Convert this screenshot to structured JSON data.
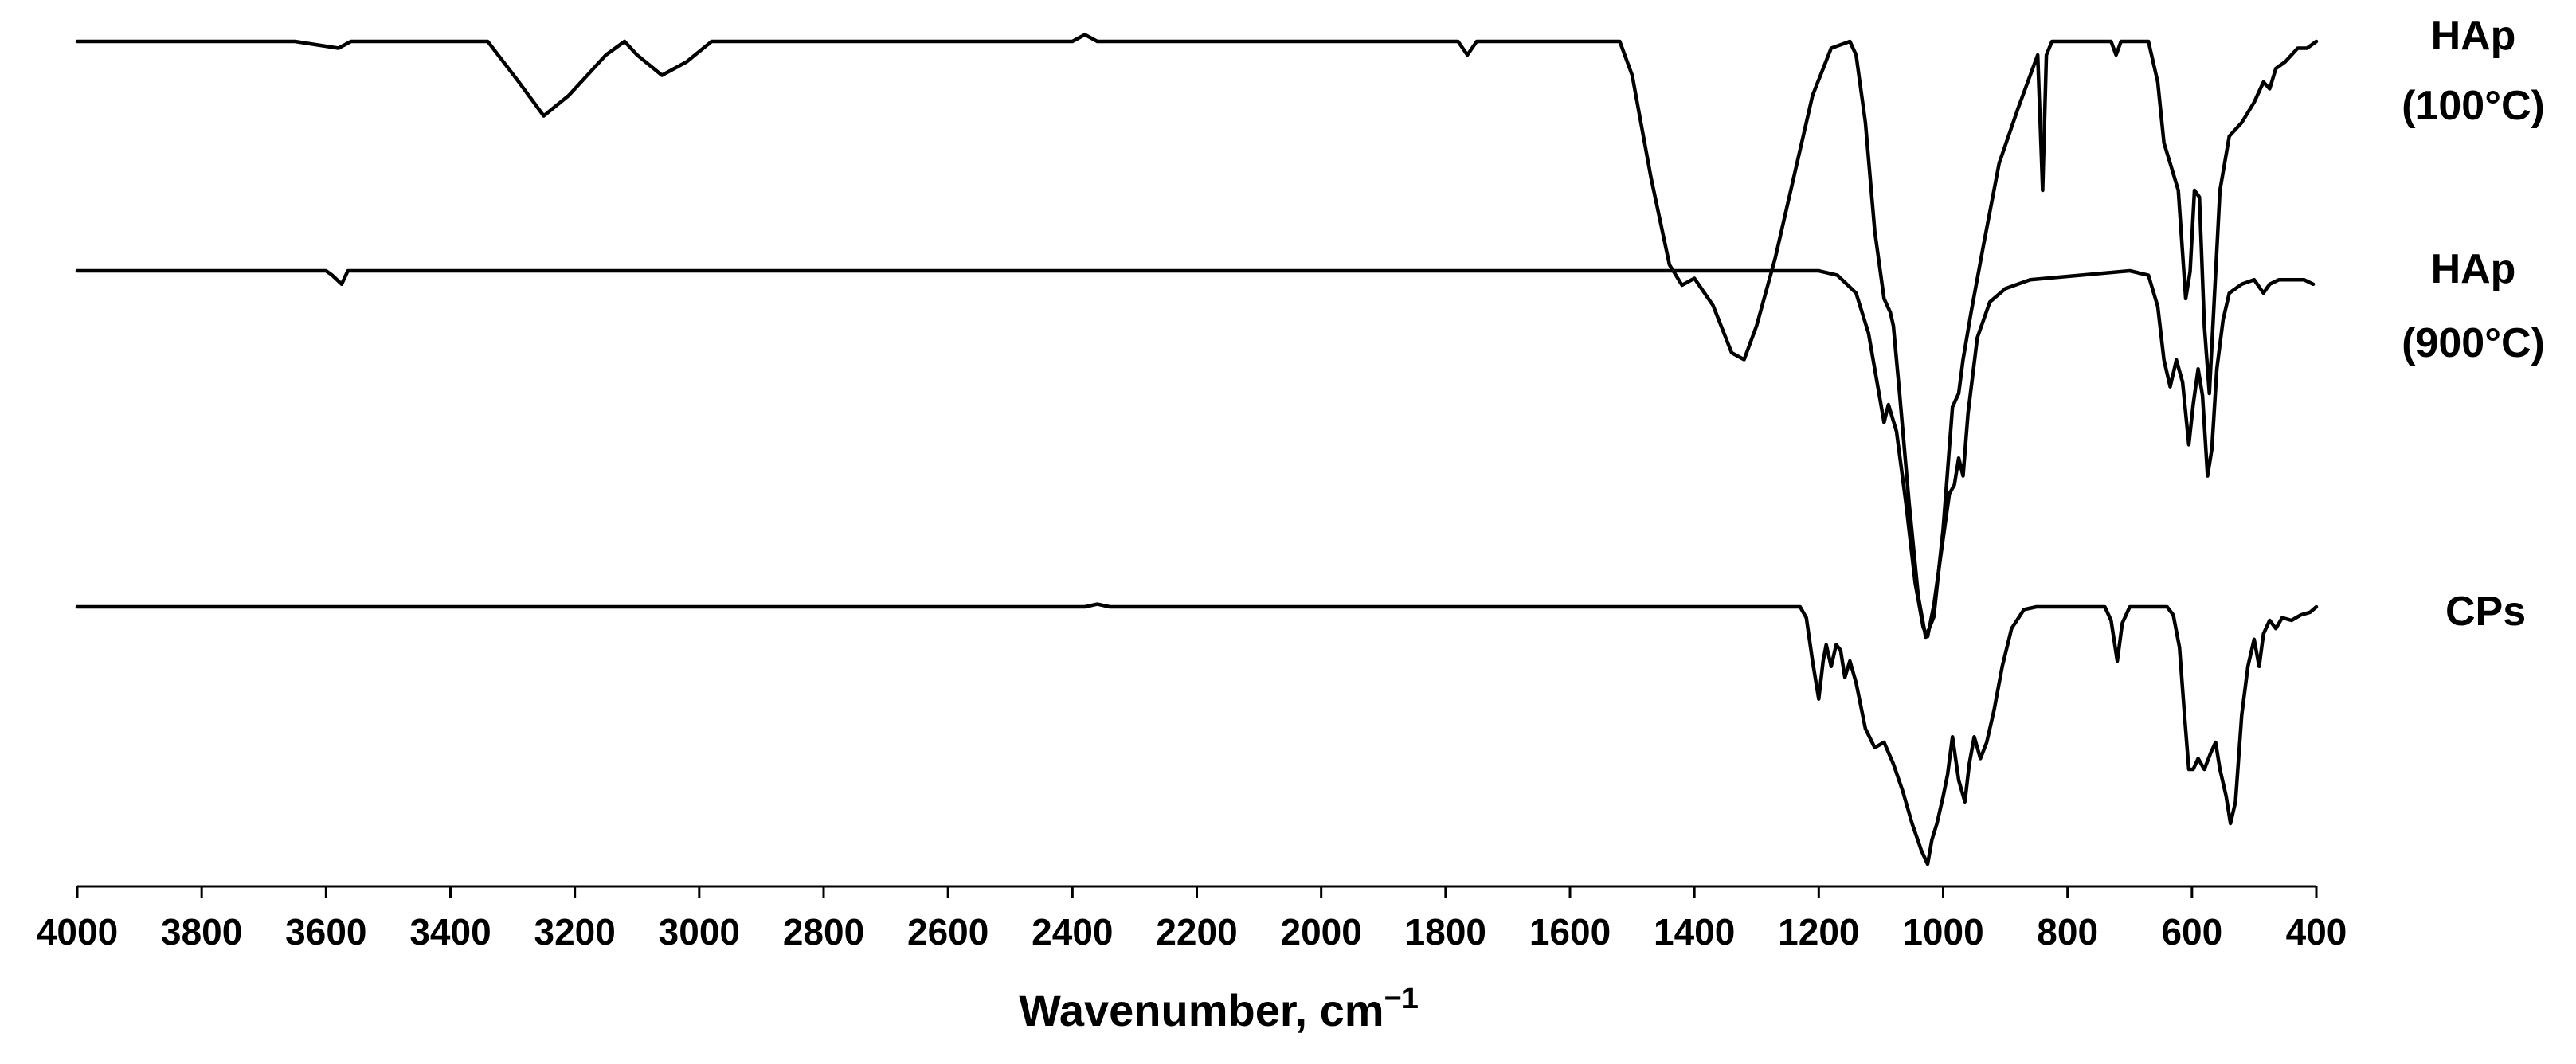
{
  "chart_data": {
    "type": "line",
    "title": "",
    "xlabel": "Wavenumber, cm",
    "xlabel_superscript": "−1",
    "ylabel": "",
    "xlim": [
      4000,
      400
    ],
    "x_reversed": true,
    "grid": false,
    "x_ticks": [
      "4000",
      "3800",
      "3600",
      "3400",
      "3200",
      "3000",
      "2800",
      "2600",
      "2400",
      "2200",
      "2000",
      "1800",
      "1600",
      "1400",
      "1200",
      "1000",
      "800",
      "600",
      "400"
    ],
    "y_units": "relative transmittance (0 = baseline, 1 = strongest band)",
    "series": [
      {
        "name": "HAp (100°C)",
        "label_lines": [
          "HAp",
          "(100°C)"
        ],
        "baseline": 0.0,
        "points": [
          [
            4000,
            0.0
          ],
          [
            3900,
            0.0
          ],
          [
            3650,
            0.0
          ],
          [
            3580,
            0.01
          ],
          [
            3560,
            0.0
          ],
          [
            3340,
            0.0
          ],
          [
            3290,
            0.06
          ],
          [
            3250,
            0.11
          ],
          [
            3210,
            0.08
          ],
          [
            3150,
            0.02
          ],
          [
            3120,
            0.0
          ],
          [
            3100,
            0.02
          ],
          [
            3060,
            0.05
          ],
          [
            3020,
            0.03
          ],
          [
            2980,
            0.0
          ],
          [
            2400,
            0.0
          ],
          [
            2380,
            -0.01
          ],
          [
            2360,
            0.0
          ],
          [
            1780,
            0.0
          ],
          [
            1765,
            0.02
          ],
          [
            1750,
            0.0
          ],
          [
            1520,
            0.0
          ],
          [
            1500,
            0.05
          ],
          [
            1470,
            0.2
          ],
          [
            1440,
            0.33
          ],
          [
            1420,
            0.36
          ],
          [
            1400,
            0.35
          ],
          [
            1370,
            0.39
          ],
          [
            1340,
            0.46
          ],
          [
            1320,
            0.47
          ],
          [
            1300,
            0.42
          ],
          [
            1270,
            0.32
          ],
          [
            1240,
            0.2
          ],
          [
            1210,
            0.08
          ],
          [
            1180,
            0.01
          ],
          [
            1150,
            0.0
          ],
          [
            1140,
            0.02
          ],
          [
            1125,
            0.12
          ],
          [
            1110,
            0.28
          ],
          [
            1095,
            0.38
          ],
          [
            1085,
            0.4
          ],
          [
            1080,
            0.42
          ],
          [
            1070,
            0.52
          ],
          [
            1055,
            0.68
          ],
          [
            1040,
            0.82
          ],
          [
            1028,
            0.88
          ],
          [
            1015,
            0.85
          ],
          [
            1000,
            0.72
          ],
          [
            985,
            0.54
          ],
          [
            975,
            0.52
          ],
          [
            968,
            0.47
          ],
          [
            955,
            0.4
          ],
          [
            935,
            0.3
          ],
          [
            910,
            0.18
          ],
          [
            880,
            0.1
          ],
          [
            860,
            0.05
          ],
          [
            848,
            0.02
          ],
          [
            840,
            0.22
          ],
          [
            834,
            0.02
          ],
          [
            825,
            0.0
          ],
          [
            730,
            0.0
          ],
          [
            722,
            0.02
          ],
          [
            714,
            0.0
          ],
          [
            670,
            0.0
          ],
          [
            655,
            0.06
          ],
          [
            645,
            0.15
          ],
          [
            635,
            0.18
          ],
          [
            622,
            0.22
          ],
          [
            610,
            0.38
          ],
          [
            603,
            0.34
          ],
          [
            596,
            0.22
          ],
          [
            588,
            0.23
          ],
          [
            580,
            0.42
          ],
          [
            572,
            0.52
          ],
          [
            564,
            0.38
          ],
          [
            555,
            0.22
          ],
          [
            540,
            0.14
          ],
          [
            520,
            0.12
          ],
          [
            500,
            0.09
          ],
          [
            485,
            0.06
          ],
          [
            475,
            0.07
          ],
          [
            465,
            0.04
          ],
          [
            450,
            0.03
          ],
          [
            430,
            0.01
          ],
          [
            415,
            0.01
          ],
          [
            400,
            0.0
          ]
        ]
      },
      {
        "name": "HAp (900°C)",
        "label_lines": [
          "HAp",
          "(900°C)"
        ],
        "baseline": 0.0,
        "points": [
          [
            4000,
            0.0
          ],
          [
            3600,
            0.0
          ],
          [
            3590,
            0.01
          ],
          [
            3575,
            0.03
          ],
          [
            3565,
            0.0
          ],
          [
            2000,
            0.0
          ],
          [
            1200,
            0.0
          ],
          [
            1170,
            0.01
          ],
          [
            1140,
            0.05
          ],
          [
            1120,
            0.14
          ],
          [
            1105,
            0.26
          ],
          [
            1095,
            0.34
          ],
          [
            1088,
            0.3
          ],
          [
            1075,
            0.36
          ],
          [
            1060,
            0.52
          ],
          [
            1045,
            0.7
          ],
          [
            1032,
            0.8
          ],
          [
            1025,
            0.82
          ],
          [
            1015,
            0.75
          ],
          [
            1000,
            0.6
          ],
          [
            990,
            0.5
          ],
          [
            982,
            0.48
          ],
          [
            975,
            0.42
          ],
          [
            968,
            0.46
          ],
          [
            960,
            0.32
          ],
          [
            945,
            0.15
          ],
          [
            925,
            0.07
          ],
          [
            900,
            0.04
          ],
          [
            860,
            0.02
          ],
          [
            700,
            0.0
          ],
          [
            670,
            0.01
          ],
          [
            655,
            0.08
          ],
          [
            645,
            0.2
          ],
          [
            635,
            0.26
          ],
          [
            625,
            0.2
          ],
          [
            615,
            0.25
          ],
          [
            605,
            0.39
          ],
          [
            598,
            0.3
          ],
          [
            590,
            0.22
          ],
          [
            583,
            0.28
          ],
          [
            575,
            0.46
          ],
          [
            568,
            0.4
          ],
          [
            560,
            0.22
          ],
          [
            550,
            0.11
          ],
          [
            540,
            0.05
          ],
          [
            520,
            0.03
          ],
          [
            500,
            0.02
          ],
          [
            485,
            0.05
          ],
          [
            475,
            0.03
          ],
          [
            460,
            0.02
          ],
          [
            440,
            0.02
          ],
          [
            420,
            0.02
          ],
          [
            405,
            0.03
          ]
        ]
      },
      {
        "name": "CPs",
        "label_lines": [
          "CPs"
        ],
        "baseline": 0.0,
        "points": [
          [
            4000,
            0.0
          ],
          [
            2380,
            0.0
          ],
          [
            2360,
            -0.01
          ],
          [
            2340,
            0.0
          ],
          [
            1230,
            0.0
          ],
          [
            1220,
            0.04
          ],
          [
            1210,
            0.2
          ],
          [
            1200,
            0.34
          ],
          [
            1193,
            0.2
          ],
          [
            1188,
            0.14
          ],
          [
            1180,
            0.22
          ],
          [
            1172,
            0.14
          ],
          [
            1165,
            0.16
          ],
          [
            1158,
            0.26
          ],
          [
            1150,
            0.2
          ],
          [
            1140,
            0.28
          ],
          [
            1125,
            0.45
          ],
          [
            1110,
            0.52
          ],
          [
            1095,
            0.5
          ],
          [
            1080,
            0.58
          ],
          [
            1065,
            0.68
          ],
          [
            1050,
            0.8
          ],
          [
            1035,
            0.9
          ],
          [
            1025,
            0.95
          ],
          [
            1018,
            0.86
          ],
          [
            1010,
            0.8
          ],
          [
            1000,
            0.7
          ],
          [
            993,
            0.62
          ],
          [
            985,
            0.48
          ],
          [
            975,
            0.64
          ],
          [
            965,
            0.72
          ],
          [
            958,
            0.58
          ],
          [
            950,
            0.48
          ],
          [
            940,
            0.56
          ],
          [
            930,
            0.5
          ],
          [
            918,
            0.38
          ],
          [
            905,
            0.22
          ],
          [
            890,
            0.08
          ],
          [
            870,
            0.01
          ],
          [
            850,
            0.0
          ],
          [
            740,
            0.0
          ],
          [
            730,
            0.05
          ],
          [
            720,
            0.2
          ],
          [
            712,
            0.06
          ],
          [
            700,
            0.0
          ],
          [
            640,
            0.0
          ],
          [
            630,
            0.03
          ],
          [
            620,
            0.15
          ],
          [
            612,
            0.4
          ],
          [
            605,
            0.6
          ],
          [
            598,
            0.6
          ],
          [
            590,
            0.56
          ],
          [
            580,
            0.6
          ],
          [
            570,
            0.54
          ],
          [
            562,
            0.5
          ],
          [
            555,
            0.6
          ],
          [
            545,
            0.7
          ],
          [
            538,
            0.8
          ],
          [
            530,
            0.72
          ],
          [
            520,
            0.4
          ],
          [
            510,
            0.22
          ],
          [
            500,
            0.12
          ],
          [
            492,
            0.22
          ],
          [
            485,
            0.1
          ],
          [
            475,
            0.05
          ],
          [
            465,
            0.08
          ],
          [
            455,
            0.04
          ],
          [
            440,
            0.05
          ],
          [
            425,
            0.03
          ],
          [
            410,
            0.02
          ],
          [
            400,
            0.0
          ]
        ]
      }
    ]
  }
}
